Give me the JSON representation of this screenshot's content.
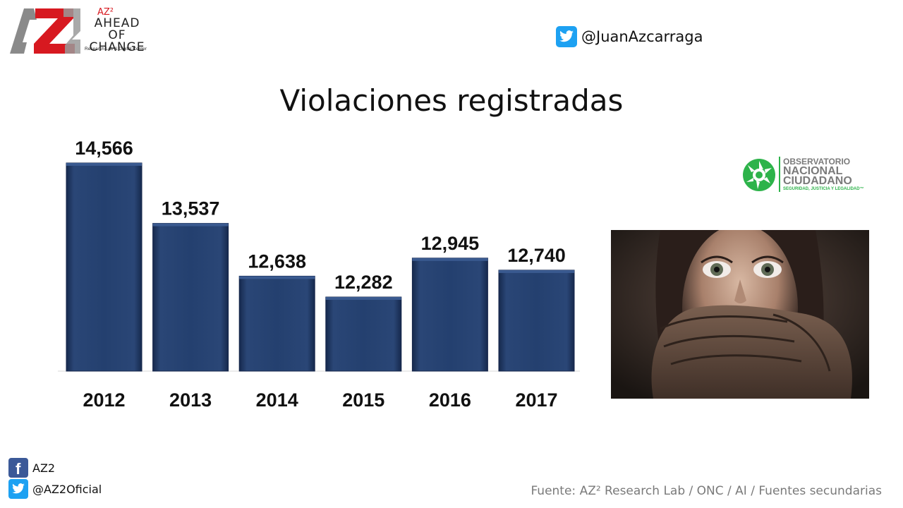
{
  "brand": {
    "mark": "AZ",
    "superscript": "AZ²",
    "name_line1": "AHEAD OF",
    "name_line2": "CHANGE",
    "tagline": "Research Lab & Digital Center",
    "icon": "az2-logo",
    "colors": {
      "red": "#d71920",
      "gray": "#8a8a8a"
    }
  },
  "header": {
    "twitter_icon": "twitter-icon",
    "twitter_handle": "@JuanAzcarraga"
  },
  "title": "Violaciones registradas",
  "chart_data": {
    "type": "bar",
    "title": "Violaciones registradas",
    "categories": [
      "2012",
      "2013",
      "2014",
      "2015",
      "2016",
      "2017"
    ],
    "values": [
      14566,
      13537,
      12638,
      12282,
      12945,
      12740
    ],
    "value_labels": [
      "14,566",
      "13,537",
      "12,638",
      "12,282",
      "12,945",
      "12,740"
    ],
    "bar_color": "#1f3864",
    "grid": false,
    "legend": "none",
    "xlabel": "",
    "ylabel": ""
  },
  "onc_logo": {
    "icon": "observatorio-logo",
    "line1": "OBSERVATORIO",
    "line2": "NACIONAL",
    "line3": "CIUDADANO",
    "line4": "SEGURIDAD, JUSTICIA Y LEGALIDAD™",
    "color_green": "#2db34a"
  },
  "photo": {
    "icon": "woman-hand-over-mouth-photo"
  },
  "footer": {
    "facebook_icon": "facebook-icon",
    "facebook_label": "AZ2",
    "twitter_icon": "twitter-icon",
    "twitter_label": "@AZ2Oficial",
    "source": "Fuente: AZ² Research Lab / ONC  / AI / Fuentes secundarias"
  }
}
